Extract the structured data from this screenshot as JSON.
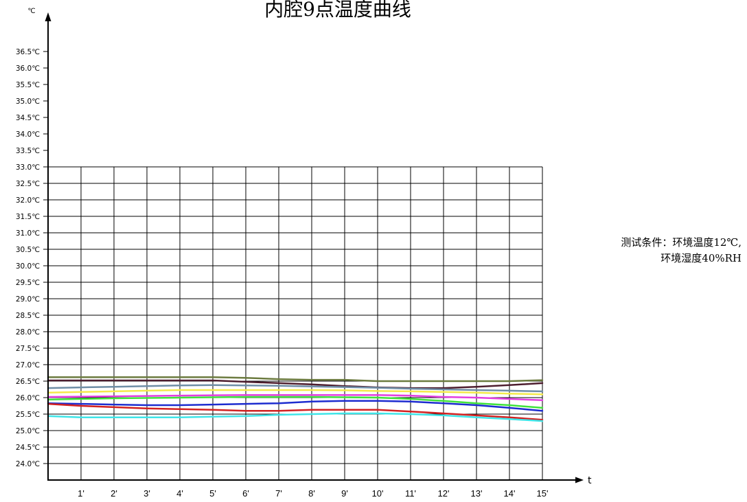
{
  "chart_data": {
    "type": "line",
    "title": "内腔9点温度曲线",
    "xlabel": "t",
    "ylabel": "℃",
    "x": [
      0,
      1,
      2,
      3,
      4,
      5,
      6,
      7,
      8,
      9,
      10,
      11,
      12,
      13,
      14,
      15
    ],
    "x_tick_values": [
      1,
      2,
      3,
      4,
      5,
      6,
      7,
      8,
      9,
      10,
      11,
      12,
      13,
      14,
      15
    ],
    "x_tick_labels": [
      "1'",
      "2'",
      "3'",
      "4'",
      "5'",
      "6'",
      "7'",
      "8'",
      "9'",
      "10'",
      "11'",
      "12'",
      "13'",
      "14'",
      "15'"
    ],
    "y_tick_values": [
      36.5,
      36.0,
      35.5,
      35.0,
      34.5,
      34.0,
      33.5,
      33.0,
      32.5,
      32.0,
      31.5,
      31.0,
      30.5,
      30.0,
      29.5,
      29.0,
      28.5,
      28.0,
      27.5,
      27.0,
      26.5,
      26.0,
      25.5,
      25.0,
      24.5,
      24.0
    ],
    "y_tick_labels": [
      "36.5℃",
      "36.0℃",
      "35.5℃",
      "35.0℃",
      "34.5℃",
      "34.0℃",
      "33.5℃",
      "33.0℃",
      "32.5℃",
      "32.0℃",
      "31.5℃",
      "31.0℃",
      "30.5℃",
      "30.0℃",
      "29.5℃",
      "29.0℃",
      "28.5℃",
      "28.0℃",
      "27.5℃",
      "27.0℃",
      "26.5℃",
      "26.0℃",
      "25.5℃",
      "25.0℃",
      "24.5℃",
      "24.0℃"
    ],
    "xlim": [
      0,
      16
    ],
    "ylim": [
      23.5,
      37.5
    ],
    "grid": {
      "on": true,
      "y_max": 33.0,
      "x_max": 15
    },
    "series": [
      {
        "color": "#6b7a3e",
        "values": [
          26.62,
          26.62,
          26.62,
          26.62,
          26.62,
          26.62,
          26.6,
          26.56,
          26.54,
          26.54,
          26.5,
          26.5,
          26.5,
          26.5,
          26.5,
          26.53
        ]
      },
      {
        "color": "#4d1d2e",
        "values": [
          26.52,
          26.52,
          26.52,
          26.52,
          26.52,
          26.52,
          26.48,
          26.44,
          26.4,
          26.35,
          26.31,
          26.29,
          26.29,
          26.33,
          26.38,
          26.44
        ]
      },
      {
        "color": "#6f8ea6",
        "values": [
          26.29,
          26.31,
          26.33,
          26.35,
          26.37,
          26.38,
          26.37,
          26.36,
          26.34,
          26.32,
          26.3,
          26.27,
          26.25,
          26.23,
          26.21,
          26.19
        ]
      },
      {
        "color": "#f3ea4c",
        "values": [
          26.15,
          26.17,
          26.19,
          26.21,
          26.23,
          26.23,
          26.23,
          26.23,
          26.23,
          26.22,
          26.2,
          26.19,
          26.17,
          26.15,
          26.12,
          26.1
        ]
      },
      {
        "color": "#e33de0",
        "values": [
          26.02,
          26.03,
          26.04,
          26.05,
          26.06,
          26.07,
          26.08,
          26.08,
          26.08,
          26.08,
          26.08,
          26.06,
          26.02,
          26.0,
          25.96,
          25.92
        ]
      },
      {
        "color": "#3fe23b",
        "values": [
          25.94,
          25.96,
          25.98,
          25.99,
          26.0,
          26.01,
          26.02,
          26.02,
          26.02,
          26.01,
          26.0,
          25.96,
          25.9,
          25.83,
          25.77,
          25.69
        ]
      },
      {
        "color": "#1d2ccf",
        "values": [
          25.83,
          25.81,
          25.79,
          25.77,
          25.77,
          25.79,
          25.81,
          25.83,
          25.88,
          25.9,
          25.9,
          25.88,
          25.83,
          25.77,
          25.69,
          25.6
        ]
      },
      {
        "color": "#d22121",
        "values": [
          25.81,
          25.75,
          25.71,
          25.67,
          25.65,
          25.63,
          25.6,
          25.6,
          25.63,
          25.63,
          25.63,
          25.58,
          25.52,
          25.46,
          25.4,
          25.33
        ]
      },
      {
        "color": "#3fe5e8",
        "values": [
          25.44,
          25.4,
          25.4,
          25.4,
          25.4,
          25.42,
          25.44,
          25.48,
          25.5,
          25.52,
          25.52,
          25.5,
          25.46,
          25.4,
          25.35,
          25.29
        ]
      }
    ],
    "annotations": [
      "测试条件：环境温度12℃,",
      "环境湿度40%RH"
    ]
  }
}
